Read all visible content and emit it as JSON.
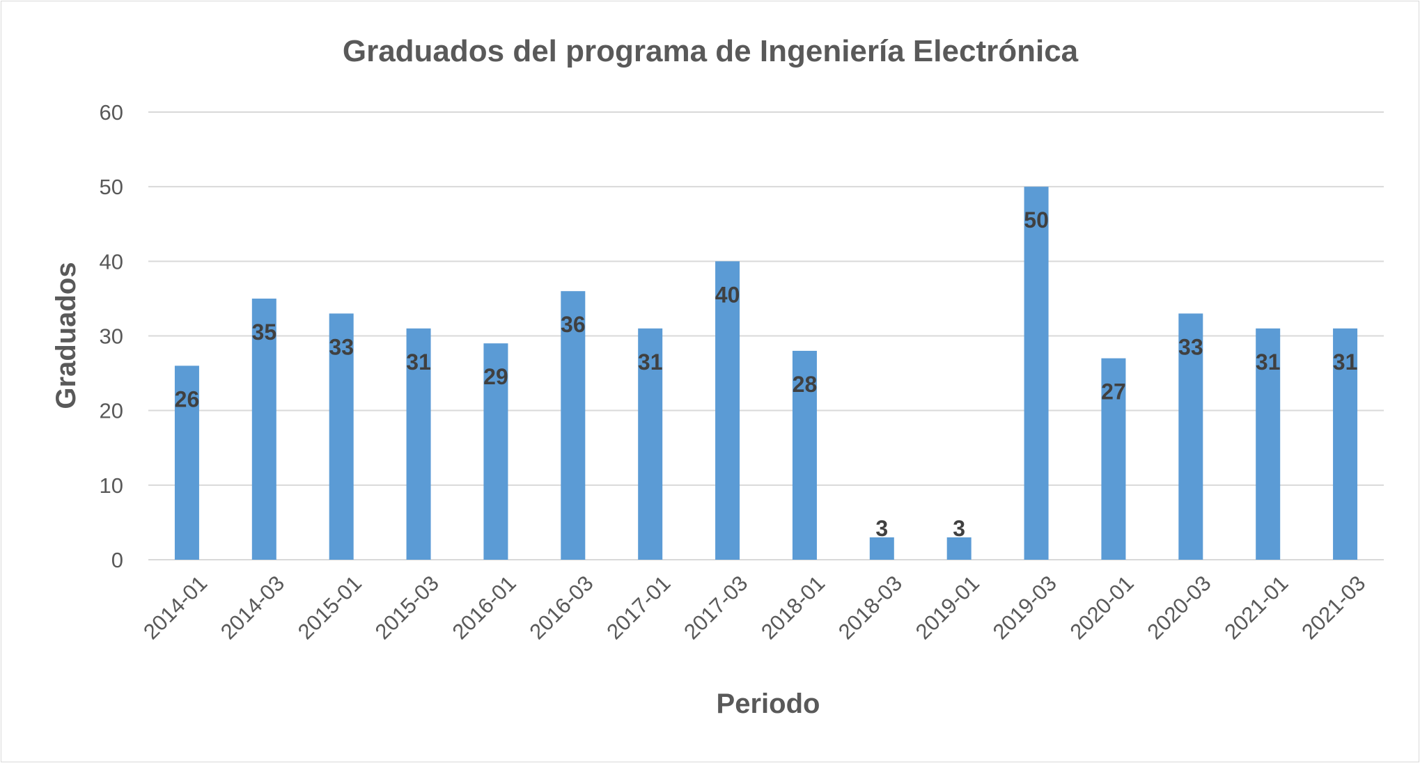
{
  "chart_data": {
    "type": "bar",
    "title": "Graduados del programa de Ingeniería Electrónica",
    "xlabel": "Periodo",
    "ylabel": "Graduados",
    "categories": [
      "2014-01",
      "2014-03",
      "2015-01",
      "2015-03",
      "2016-01",
      "2016-03",
      "2017-01",
      "2017-03",
      "2018-01",
      "2018-03",
      "2019-01",
      "2019-03",
      "2020-01",
      "2020-03",
      "2021-01",
      "2021-03"
    ],
    "values": [
      26,
      35,
      33,
      31,
      29,
      36,
      31,
      40,
      28,
      3,
      3,
      50,
      27,
      33,
      31,
      31
    ],
    "ylim": [
      0,
      60
    ],
    "yticks": [
      0,
      10,
      20,
      30,
      40,
      50,
      60
    ],
    "grid": true,
    "legend": "none",
    "bar_color": "#5b9bd5",
    "data_labels": true
  }
}
